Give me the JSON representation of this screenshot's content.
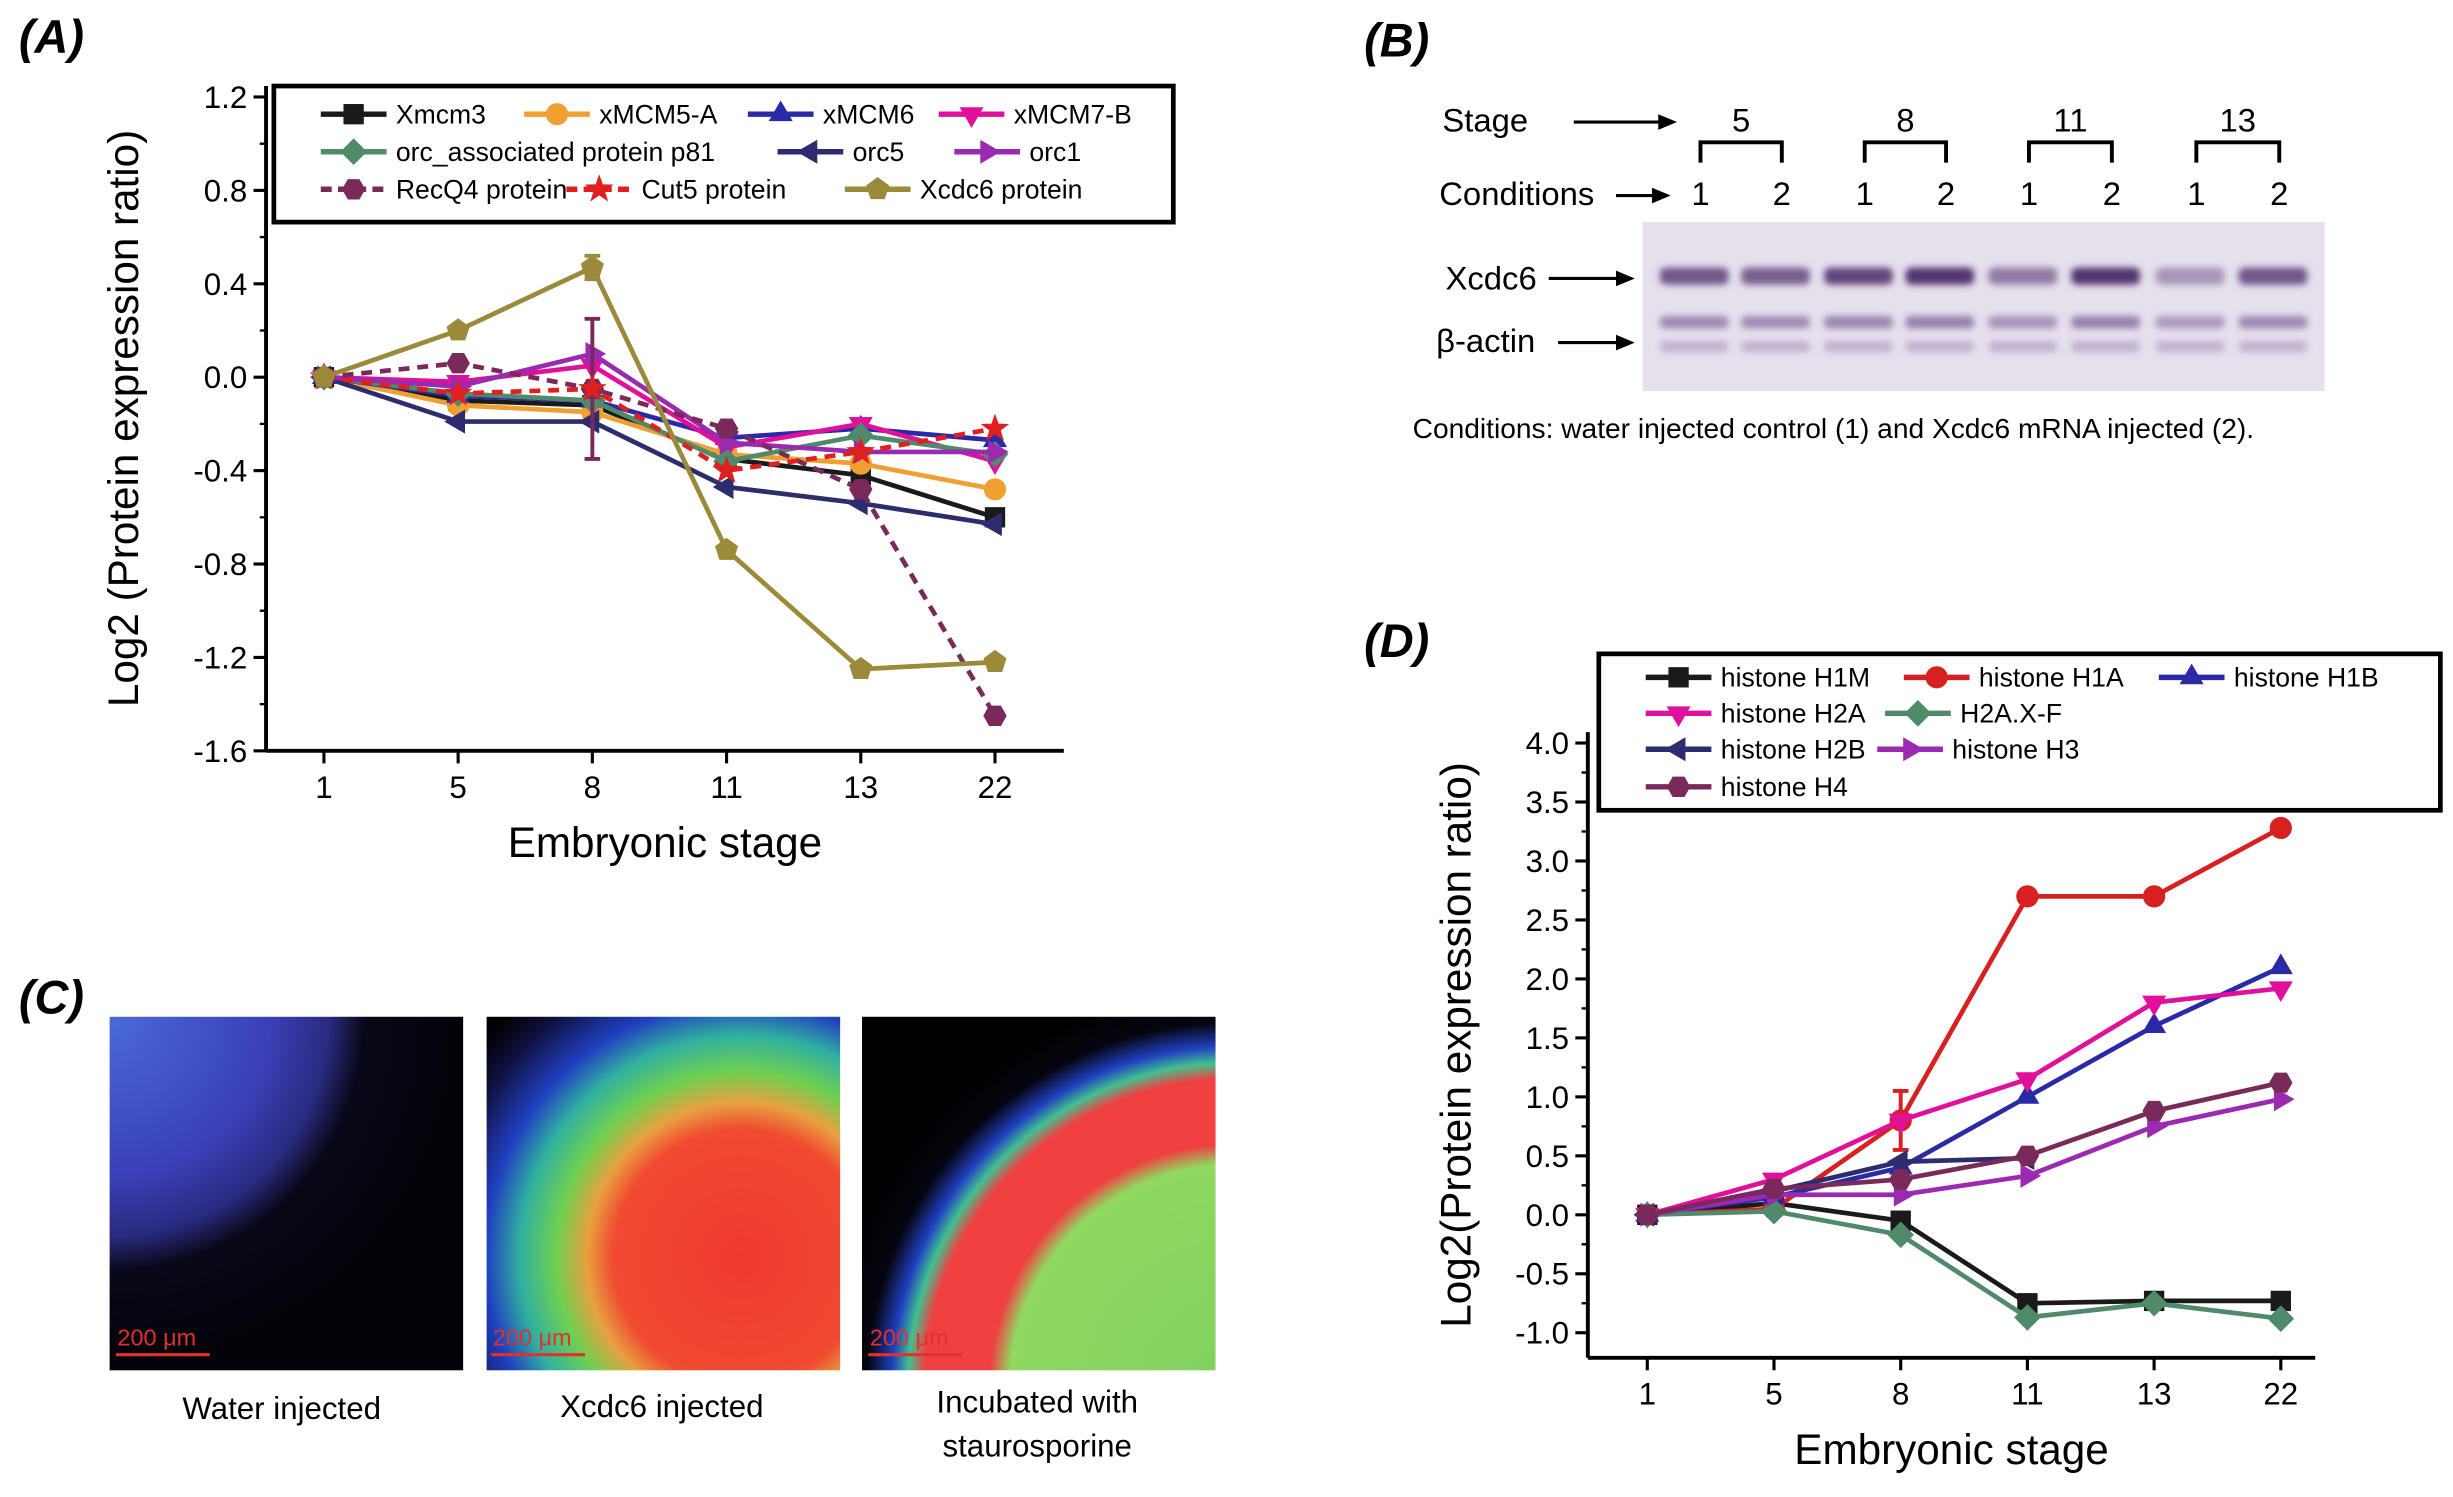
{
  "panels": {
    "a_label": "(A)",
    "b_label": "(B)",
    "c_label": "(C)",
    "d_label": "(D)"
  },
  "blot": {
    "stage_label": "Stage",
    "conditions_label": "Conditions",
    "stages": [
      "5",
      "8",
      "11",
      "13"
    ],
    "conditions": [
      "1",
      "2",
      "1",
      "2",
      "1",
      "2",
      "1",
      "2"
    ],
    "band1_label": "Xcdc6",
    "band2_label": "β-actin",
    "caption": "Conditions: water injected control (1) and Xcdc6 mRNA injected (2).",
    "xcdc6_band_intensity": [
      0.75,
      0.7,
      0.85,
      0.95,
      0.55,
      0.95,
      0.4,
      0.75
    ]
  },
  "images": {
    "scale_bar": "200 μm",
    "captions": [
      "Water injected",
      "Xcdc6 injected",
      "Incubated with",
      "staurosporine"
    ]
  },
  "chart_data": [
    {
      "type": "line",
      "panel": "A",
      "title": "",
      "xlabel": "Embryonic stage",
      "ylabel": "Log2 (Protein expression ratio)",
      "categories": [
        "1",
        "5",
        "8",
        "11",
        "13",
        "22"
      ],
      "ylim": [
        -1.6,
        1.2
      ],
      "yticks": [
        "1.2",
        "0.8",
        "0.4",
        "0.0",
        "-0.4",
        "-0.8",
        "-1.2",
        "-1.6"
      ],
      "ytick_values": [
        1.2,
        0.8,
        0.4,
        0.0,
        -0.4,
        -0.8,
        -1.2,
        -1.6
      ],
      "legend": "top",
      "series": [
        {
          "name": "Xmcm3",
          "color": "#1a1a1a",
          "marker": "square",
          "dashed": false,
          "values": [
            0,
            -0.1,
            -0.12,
            -0.35,
            -0.42,
            -0.6
          ]
        },
        {
          "name": "xMCM5-A",
          "color": "#f0a030",
          "marker": "circle",
          "dashed": false,
          "values": [
            0,
            -0.12,
            -0.15,
            -0.33,
            -0.37,
            -0.48
          ]
        },
        {
          "name": "xMCM6",
          "color": "#2a2aa8",
          "marker": "tri-up",
          "dashed": false,
          "values": [
            0,
            -0.08,
            -0.1,
            -0.26,
            -0.22,
            -0.27
          ]
        },
        {
          "name": "xMCM7-B",
          "color": "#e0109a",
          "marker": "tri-down",
          "dashed": false,
          "values": [
            0,
            -0.02,
            0.05,
            -0.3,
            -0.2,
            -0.36
          ]
        },
        {
          "name": "orc_associated protein p81",
          "color": "#4f8a6a",
          "marker": "diamond",
          "dashed": false,
          "values": [
            0,
            -0.07,
            -0.1,
            -0.36,
            -0.25,
            -0.33
          ]
        },
        {
          "name": "orc5",
          "color": "#2c2c6e",
          "marker": "tri-left",
          "dashed": false,
          "values": [
            0,
            -0.19,
            -0.19,
            -0.47,
            -0.54,
            -0.63
          ]
        },
        {
          "name": "orc1",
          "color": "#9a2ab0",
          "marker": "tri-right",
          "dashed": false,
          "values": [
            0,
            -0.04,
            0.1,
            -0.28,
            -0.32,
            -0.32
          ]
        },
        {
          "name": "RecQ4 protein",
          "color": "#7a2a5a",
          "marker": "hexagon",
          "dashed": true,
          "values": [
            0,
            0.06,
            -0.05,
            -0.22,
            -0.48,
            -1.45
          ],
          "errors": [
            0,
            0,
            0.3,
            0,
            0,
            0
          ]
        },
        {
          "name": "Cut5 protein",
          "color": "#e02020",
          "marker": "star",
          "dashed": true,
          "values": [
            0,
            -0.07,
            -0.05,
            -0.4,
            -0.32,
            -0.22
          ]
        },
        {
          "name": "Xcdc6 protein",
          "color": "#9a8a3a",
          "marker": "pentagon",
          "dashed": false,
          "values": [
            0,
            0.2,
            0.47,
            -0.74,
            -1.25,
            -1.22
          ],
          "errors": [
            0,
            0,
            0.05,
            0,
            0,
            0
          ]
        }
      ]
    },
    {
      "type": "line",
      "panel": "D",
      "title": "",
      "xlabel": "Embryonic stage",
      "ylabel": "Log2(Protein expression ratio)",
      "categories": [
        "1",
        "5",
        "8",
        "11",
        "13",
        "22"
      ],
      "ylim": [
        -1.0,
        4.0
      ],
      "yticks": [
        "4.0",
        "3.5",
        "3.0",
        "2.5",
        "2.0",
        "1.5",
        "1.0",
        "0.5",
        "0.0",
        "-0.5",
        "-1.0"
      ],
      "ytick_values": [
        4.0,
        3.5,
        3.0,
        2.5,
        2.0,
        1.5,
        1.0,
        0.5,
        0.0,
        -0.5,
        -1.0
      ],
      "legend": "top",
      "series": [
        {
          "name": "histone H1M",
          "color": "#1a1a1a",
          "marker": "square",
          "dashed": false,
          "values": [
            0,
            0.1,
            -0.05,
            -0.75,
            -0.73,
            -0.73
          ]
        },
        {
          "name": "histone H1A",
          "color": "#d82020",
          "marker": "circle",
          "dashed": false,
          "values": [
            0,
            0.05,
            0.8,
            2.7,
            2.7,
            3.28
          ],
          "errors": [
            0,
            0,
            0.25,
            0,
            0,
            0
          ]
        },
        {
          "name": "histone H1B",
          "color": "#2a2aa8",
          "marker": "tri-up",
          "dashed": false,
          "values": [
            0,
            0.15,
            0.4,
            1.0,
            1.6,
            2.1
          ]
        },
        {
          "name": "histone H2A",
          "color": "#e0109a",
          "marker": "tri-down",
          "dashed": false,
          "values": [
            0,
            0.3,
            0.8,
            1.15,
            1.8,
            1.92
          ]
        },
        {
          "name": "H2A.X-F",
          "color": "#4f8a6a",
          "marker": "diamond",
          "dashed": false,
          "values": [
            0,
            0.03,
            -0.17,
            -0.87,
            -0.75,
            -0.88
          ]
        },
        {
          "name": "histone H2B",
          "color": "#2c2c6e",
          "marker": "tri-left",
          "dashed": false,
          "values": [
            0,
            0.2,
            0.45,
            0.48,
            null,
            null
          ]
        },
        {
          "name": "histone H3",
          "color": "#9a2ab0",
          "marker": "tri-right",
          "dashed": false,
          "values": [
            0,
            0.17,
            0.17,
            0.33,
            0.75,
            0.98
          ]
        },
        {
          "name": "histone H4",
          "color": "#7a2a5a",
          "marker": "hexagon",
          "dashed": false,
          "values": [
            0,
            0.22,
            0.3,
            0.5,
            0.88,
            1.12
          ]
        }
      ]
    }
  ]
}
